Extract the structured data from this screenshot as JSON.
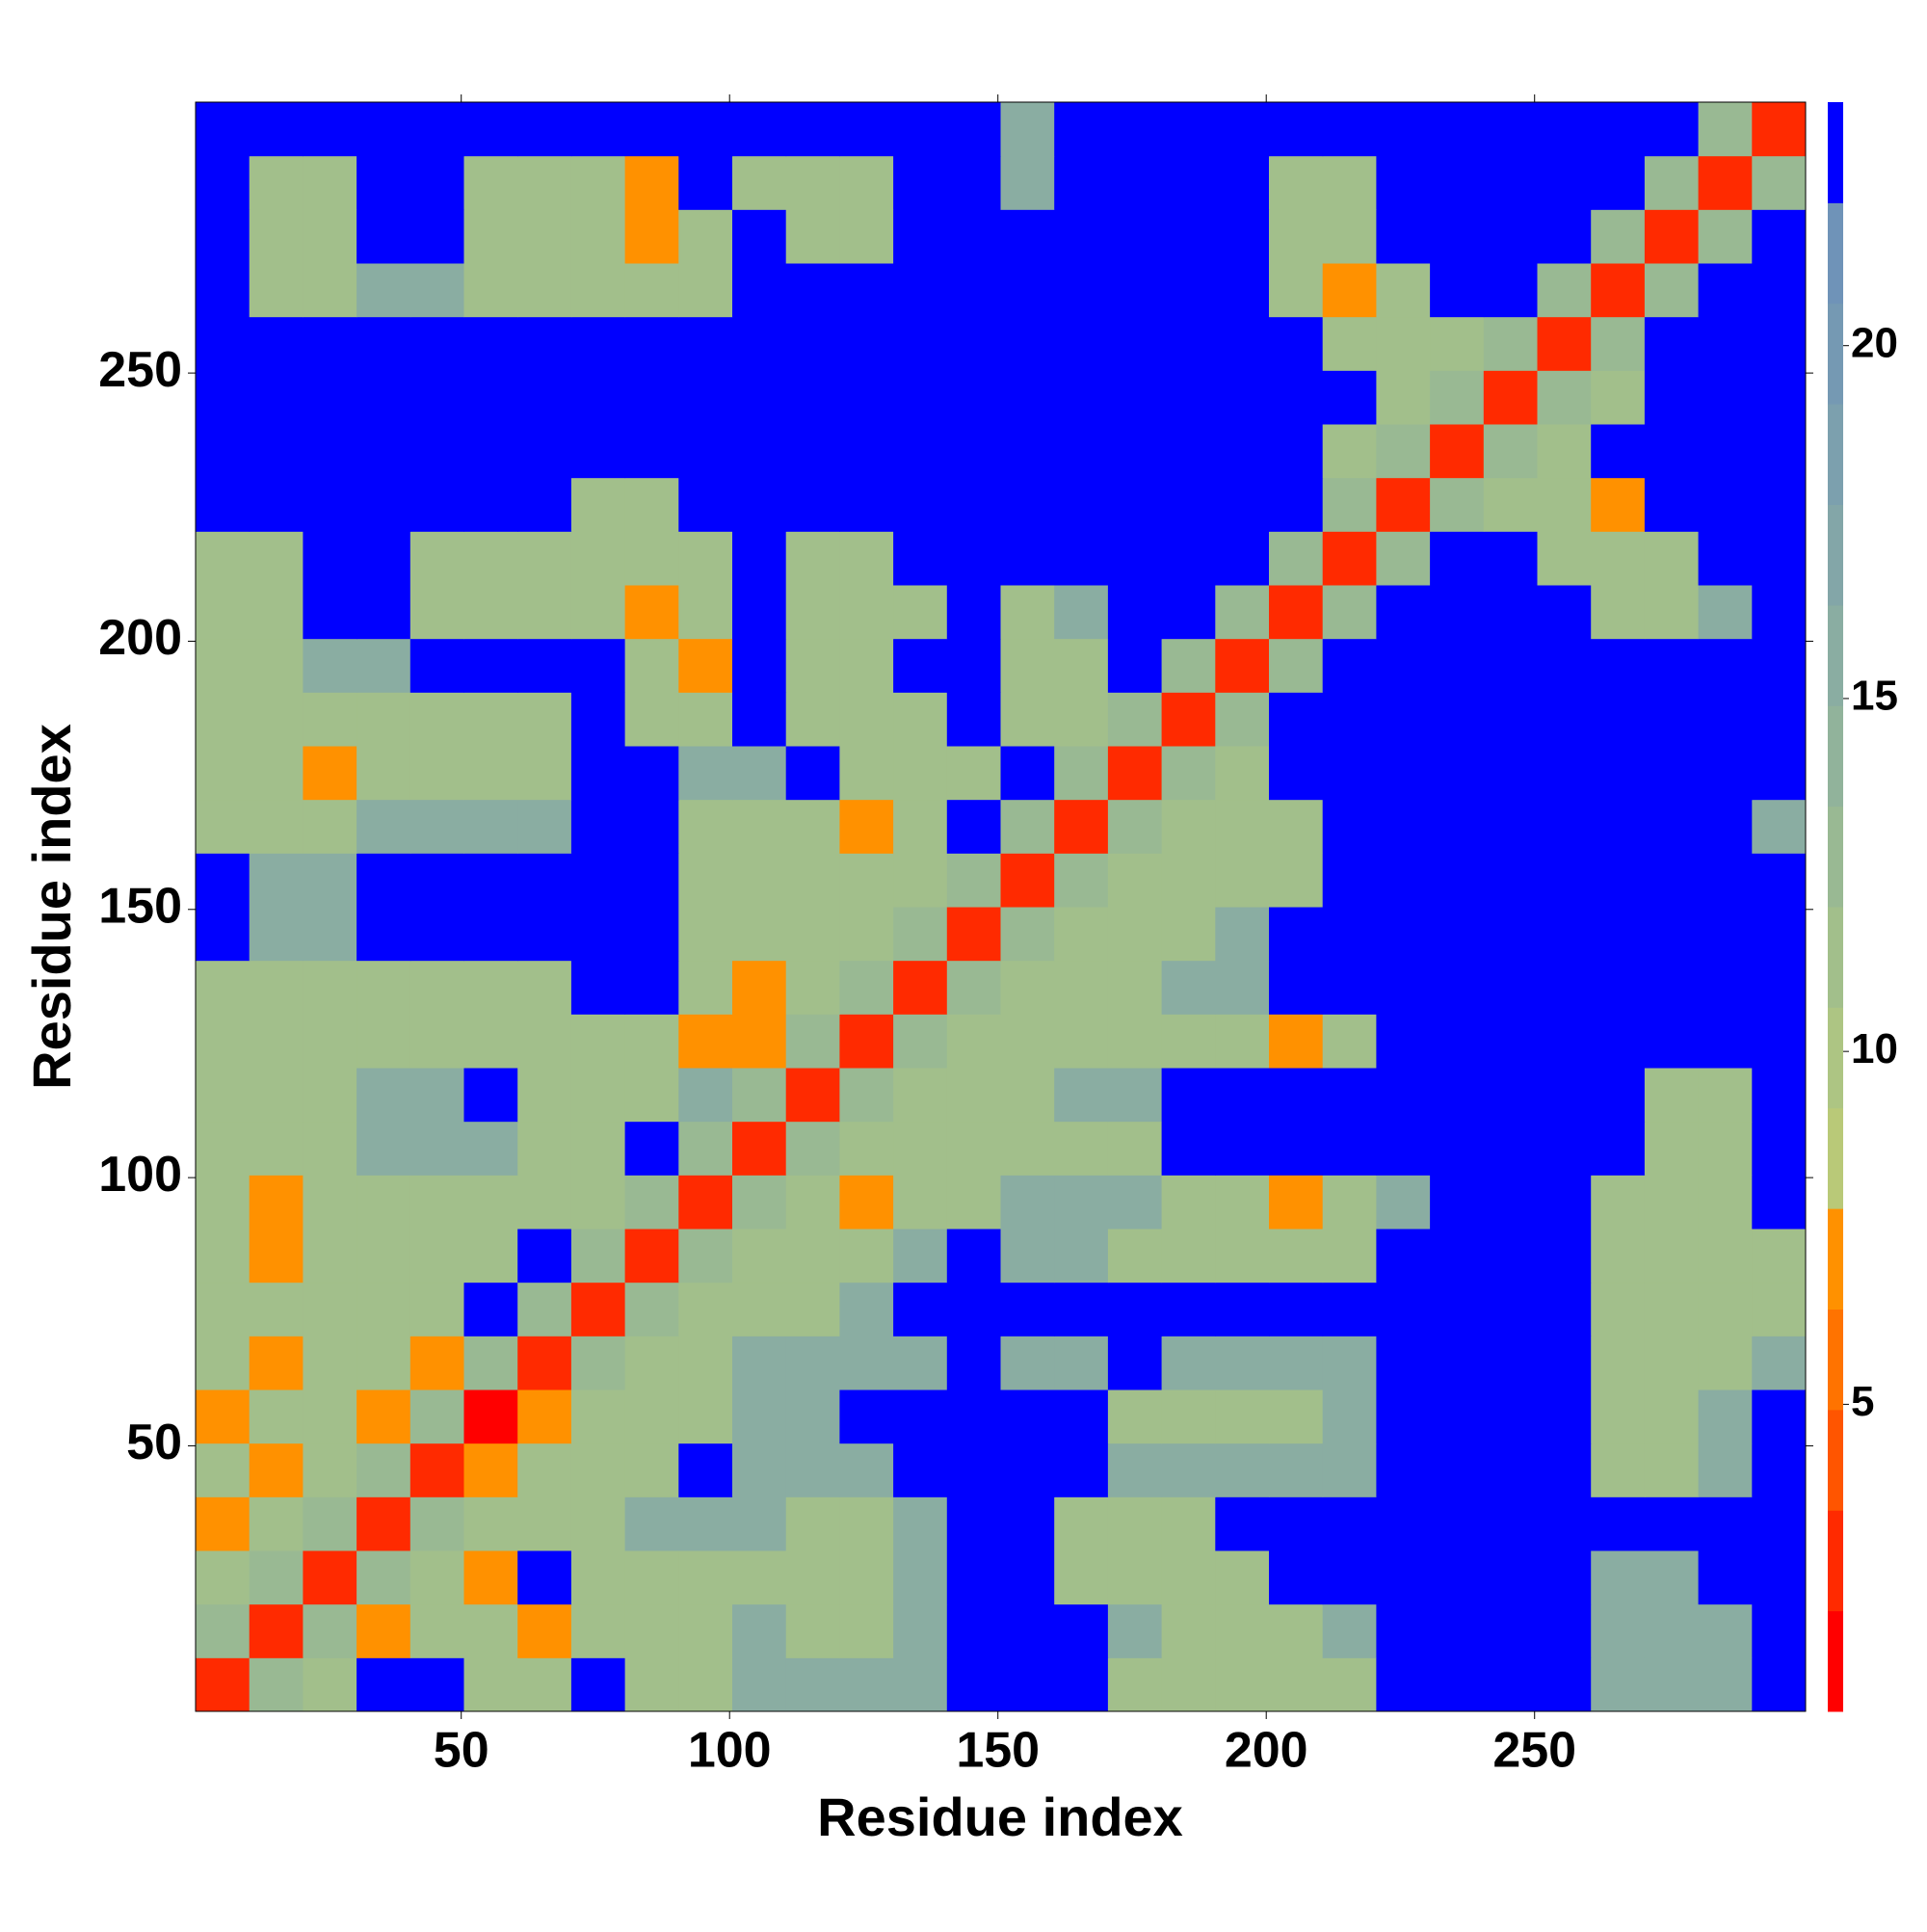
{
  "chart_data": {
    "type": "heatmap",
    "xlabel": "Residue index",
    "ylabel": "Residue index",
    "xlim": [
      0.5,
      300.5
    ],
    "ylim": [
      0.5,
      300.5
    ],
    "xticks": [
      50,
      100,
      150,
      200,
      250
    ],
    "yticks": [
      50,
      100,
      150,
      200,
      250
    ],
    "x": [
      5.5,
      15.5,
      25.5,
      35.5,
      45.5,
      55.5,
      65.5,
      75.5,
      85.5,
      95.5,
      105.5,
      115.5,
      125.5,
      135.5,
      145.5,
      155.5,
      165.5,
      175.5,
      185.5,
      195.5,
      205.5,
      215.5,
      225.5,
      235.5,
      245.5,
      255.5,
      265.5,
      275.5,
      285.5,
      295.5
    ],
    "y": [
      5.5,
      15.5,
      25.5,
      35.5,
      45.5,
      55.5,
      65.5,
      75.5,
      85.5,
      95.5,
      105.5,
      115.5,
      125.5,
      135.5,
      145.5,
      155.5,
      165.5,
      175.5,
      185.5,
      195.5,
      205.5,
      215.5,
      225.5,
      235.5,
      245.5,
      255.5,
      265.5,
      275.5,
      285.5,
      295.5
    ],
    "z": [
      [
        3,
        13,
        12,
        23,
        23,
        12,
        12,
        23,
        12,
        12,
        15,
        15,
        15,
        15,
        23,
        23,
        23,
        12,
        12,
        12,
        12,
        12,
        23,
        23,
        23,
        23,
        15,
        15,
        15,
        23
      ],
      [
        13,
        3,
        13,
        7,
        12,
        12,
        7,
        12,
        12,
        12,
        15,
        12,
        12,
        15,
        23,
        23,
        23,
        15,
        12,
        12,
        12,
        15,
        23,
        23,
        23,
        23,
        15,
        15,
        15,
        23
      ],
      [
        12,
        13,
        3,
        13,
        12,
        7,
        23,
        12,
        12,
        12,
        12,
        12,
        12,
        15,
        23,
        23,
        12,
        12,
        12,
        12,
        23,
        23,
        23,
        23,
        23,
        23,
        15,
        15,
        23,
        23
      ],
      [
        7,
        12,
        13,
        3,
        13,
        12,
        12,
        12,
        15,
        15,
        15,
        12,
        12,
        15,
        23,
        23,
        12,
        12,
        12,
        23,
        23,
        23,
        23,
        23,
        23,
        23,
        23,
        23,
        23,
        23
      ],
      [
        12,
        7,
        12,
        13,
        3,
        7,
        12,
        12,
        12,
        23,
        15,
        15,
        15,
        23,
        23,
        23,
        23,
        15,
        15,
        15,
        15,
        15,
        23,
        23,
        23,
        23,
        12,
        12,
        15,
        23
      ],
      [
        7,
        12,
        12,
        7,
        13,
        1,
        7,
        12,
        12,
        12,
        15,
        15,
        23,
        23,
        23,
        23,
        23,
        12,
        12,
        12,
        12,
        15,
        23,
        23,
        23,
        23,
        12,
        12,
        15,
        23
      ],
      [
        12,
        7,
        12,
        12,
        7,
        13,
        3,
        13,
        12,
        12,
        15,
        15,
        15,
        15,
        23,
        15,
        15,
        23,
        15,
        15,
        15,
        15,
        23,
        23,
        23,
        23,
        12,
        12,
        12,
        15
      ],
      [
        12,
        12,
        12,
        12,
        12,
        23,
        13,
        3,
        13,
        12,
        12,
        12,
        15,
        23,
        23,
        23,
        23,
        23,
        23,
        23,
        23,
        23,
        23,
        23,
        23,
        23,
        12,
        12,
        12,
        12
      ],
      [
        12,
        7,
        12,
        12,
        12,
        12,
        23,
        13,
        3,
        13,
        12,
        12,
        12,
        15,
        23,
        15,
        15,
        12,
        12,
        12,
        12,
        12,
        23,
        23,
        23,
        23,
        12,
        12,
        12,
        12
      ],
      [
        12,
        7,
        12,
        12,
        12,
        12,
        12,
        12,
        13,
        3,
        13,
        12,
        7,
        12,
        12,
        15,
        15,
        15,
        12,
        12,
        7,
        12,
        15,
        23,
        23,
        23,
        12,
        12,
        12,
        23
      ],
      [
        12,
        12,
        12,
        15,
        15,
        15,
        12,
        12,
        23,
        13,
        3,
        13,
        12,
        12,
        12,
        12,
        12,
        12,
        23,
        23,
        23,
        23,
        23,
        23,
        23,
        23,
        23,
        12,
        12,
        23
      ],
      [
        12,
        12,
        12,
        15,
        15,
        23,
        12,
        12,
        12,
        15,
        13,
        3,
        13,
        12,
        12,
        12,
        15,
        15,
        23,
        23,
        23,
        23,
        23,
        23,
        23,
        23,
        23,
        12,
        12,
        23
      ],
      [
        12,
        12,
        12,
        12,
        12,
        12,
        12,
        12,
        12,
        7,
        7,
        13,
        3,
        13,
        12,
        12,
        12,
        12,
        12,
        12,
        7,
        12,
        23,
        23,
        23,
        23,
        23,
        23,
        23,
        23
      ],
      [
        12,
        12,
        12,
        12,
        12,
        12,
        12,
        23,
        23,
        12,
        7,
        12,
        13,
        3,
        13,
        12,
        12,
        12,
        15,
        15,
        23,
        23,
        23,
        23,
        23,
        23,
        23,
        23,
        23,
        23
      ],
      [
        23,
        15,
        15,
        23,
        23,
        23,
        23,
        23,
        23,
        12,
        12,
        12,
        12,
        13,
        3,
        13,
        12,
        12,
        12,
        15,
        23,
        23,
        23,
        23,
        23,
        23,
        23,
        23,
        23,
        23
      ],
      [
        23,
        15,
        15,
        23,
        23,
        23,
        23,
        23,
        23,
        12,
        12,
        12,
        12,
        12,
        13,
        3,
        13,
        12,
        12,
        12,
        12,
        23,
        23,
        23,
        23,
        23,
        23,
        23,
        23,
        23
      ],
      [
        12,
        12,
        12,
        15,
        15,
        15,
        15,
        23,
        23,
        12,
        12,
        12,
        7,
        12,
        23,
        13,
        3,
        13,
        12,
        12,
        12,
        23,
        23,
        23,
        23,
        23,
        23,
        23,
        23,
        15
      ],
      [
        12,
        12,
        7,
        12,
        12,
        12,
        12,
        23,
        23,
        15,
        15,
        23,
        12,
        12,
        12,
        23,
        13,
        3,
        13,
        12,
        23,
        23,
        23,
        23,
        23,
        23,
        23,
        23,
        23,
        23
      ],
      [
        12,
        12,
        12,
        12,
        12,
        12,
        12,
        23,
        12,
        12,
        23,
        12,
        12,
        12,
        23,
        12,
        12,
        13,
        3,
        13,
        23,
        23,
        23,
        23,
        23,
        23,
        23,
        23,
        23,
        23
      ],
      [
        12,
        12,
        15,
        15,
        23,
        23,
        23,
        23,
        12,
        7,
        23,
        12,
        12,
        23,
        23,
        12,
        12,
        23,
        13,
        3,
        13,
        23,
        23,
        23,
        23,
        23,
        23,
        23,
        23,
        23
      ],
      [
        12,
        12,
        23,
        23,
        12,
        12,
        12,
        12,
        7,
        12,
        23,
        12,
        12,
        12,
        23,
        12,
        15,
        23,
        23,
        13,
        3,
        13,
        23,
        23,
        23,
        23,
        12,
        12,
        15,
        23
      ],
      [
        12,
        12,
        23,
        23,
        12,
        12,
        12,
        12,
        12,
        12,
        23,
        12,
        12,
        23,
        23,
        23,
        23,
        23,
        23,
        23,
        13,
        3,
        13,
        23,
        23,
        12,
        12,
        12,
        23,
        23
      ],
      [
        23,
        23,
        23,
        23,
        23,
        23,
        23,
        12,
        12,
        23,
        23,
        23,
        23,
        23,
        23,
        23,
        23,
        23,
        23,
        23,
        23,
        13,
        3,
        13,
        12,
        12,
        7,
        23,
        23,
        23
      ],
      [
        23,
        23,
        23,
        23,
        23,
        23,
        23,
        23,
        23,
        23,
        23,
        23,
        23,
        23,
        23,
        23,
        23,
        23,
        23,
        23,
        23,
        12,
        13,
        3,
        13,
        12,
        23,
        23,
        23,
        23
      ],
      [
        23,
        23,
        23,
        23,
        23,
        23,
        23,
        23,
        23,
        23,
        23,
        23,
        23,
        23,
        23,
        23,
        23,
        23,
        23,
        23,
        23,
        23,
        12,
        13,
        3,
        13,
        12,
        23,
        23,
        23
      ],
      [
        23,
        23,
        23,
        23,
        23,
        23,
        23,
        23,
        23,
        23,
        23,
        23,
        23,
        23,
        23,
        23,
        23,
        23,
        23,
        23,
        23,
        12,
        12,
        12,
        13,
        3,
        13,
        23,
        23,
        23
      ],
      [
        23,
        12,
        12,
        15,
        15,
        12,
        12,
        12,
        12,
        12,
        23,
        23,
        23,
        23,
        23,
        23,
        23,
        23,
        23,
        23,
        12,
        7,
        12,
        23,
        23,
        13,
        3,
        13,
        23,
        23
      ],
      [
        23,
        12,
        12,
        23,
        23,
        12,
        12,
        12,
        7,
        12,
        23,
        12,
        12,
        23,
        23,
        23,
        23,
        23,
        23,
        23,
        12,
        12,
        23,
        23,
        23,
        23,
        13,
        3,
        13,
        23
      ],
      [
        23,
        12,
        12,
        23,
        23,
        12,
        12,
        12,
        7,
        23,
        12,
        12,
        12,
        23,
        23,
        15,
        23,
        23,
        23,
        23,
        12,
        12,
        23,
        23,
        23,
        23,
        23,
        13,
        3,
        13
      ],
      [
        23,
        23,
        23,
        23,
        23,
        23,
        23,
        23,
        23,
        23,
        23,
        23,
        23,
        23,
        23,
        15,
        23,
        23,
        23,
        23,
        23,
        23,
        23,
        23,
        23,
        23,
        23,
        23,
        13,
        3
      ]
    ],
    "colorbar": {
      "lim": [
        0.65,
        23.45
      ],
      "ticks": [
        5,
        10,
        15,
        20
      ],
      "levels": [
        0.65,
        2.075,
        3.5,
        4.925,
        6.35,
        7.775,
        9.2,
        10.625,
        12.05,
        13.475,
        14.9,
        16.325,
        17.75,
        19.175,
        20.6,
        22.025,
        23.45
      ],
      "colors": [
        "#ff0000",
        "#ff2a00",
        "#ff5500",
        "#ff7300",
        "#ff9100",
        "#b9c978",
        "#adc583",
        "#a2bf8b",
        "#99b993",
        "#91b39b",
        "#8aada2",
        "#83a6a8",
        "#7ca0ae",
        "#7599b3",
        "#6f93b8",
        "#0000ff"
      ]
    }
  }
}
